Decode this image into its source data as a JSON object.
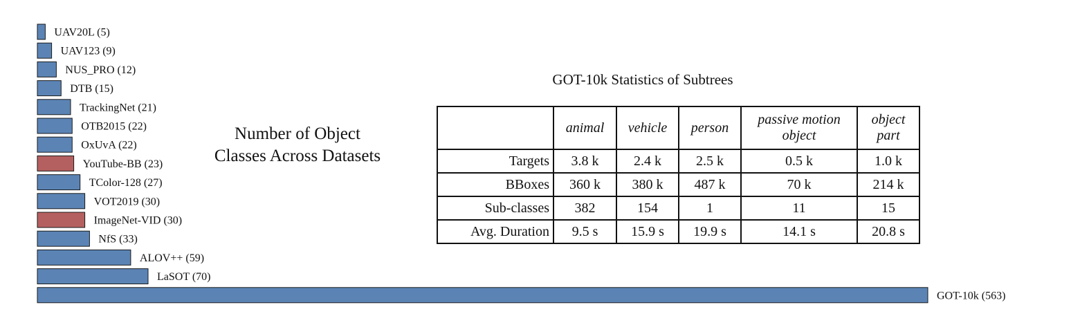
{
  "chart_data": [
    {
      "type": "bar",
      "orientation": "horizontal",
      "title": "Number of Object Classes Across Datasets",
      "title_lines": [
        "Number of Object",
        "Classes Across Datasets"
      ],
      "categories": [
        "UAV20L",
        "UAV123",
        "NUS_PRO",
        "DTB",
        "TrackingNet",
        "OTB2015",
        "OxUvA",
        "YouTube-BB",
        "TColor-128",
        "VOT2019",
        "ImageNet-VID",
        "NfS",
        "ALOV++",
        "LaSOT",
        "GOT-10k"
      ],
      "values": [
        5,
        9,
        12,
        15,
        21,
        22,
        22,
        23,
        27,
        30,
        30,
        33,
        59,
        70,
        563
      ],
      "labels": [
        "UAV20L (5)",
        "UAV123 (9)",
        "NUS_PRO (12)",
        "DTB (15)",
        "TrackingNet (21)",
        "OTB2015 (22)",
        "OxUvA (22)",
        "YouTube-BB (23)",
        "TColor-128 (27)",
        "VOT2019 (30)",
        "ImageNet-VID (30)",
        "NfS (33)",
        "ALOV++ (59)",
        "LaSOT (70)",
        "GOT-10k (563)"
      ],
      "bar_colors": [
        "#5b84b5",
        "#5b84b5",
        "#5b84b5",
        "#5b84b5",
        "#5b84b5",
        "#5b84b5",
        "#5b84b5",
        "#b56060",
        "#5b84b5",
        "#5b84b5",
        "#b56060",
        "#5b84b5",
        "#5b84b5",
        "#5b84b5",
        "#5b84b5"
      ],
      "xlim": [
        0,
        563
      ],
      "grid": false,
      "legend": "none"
    },
    {
      "type": "table",
      "title": "GOT-10k Statistics of Subtrees",
      "columns": [
        "animal",
        "vehicle",
        "person",
        "passive motion object",
        "object part"
      ],
      "column_lines": [
        [
          "animal"
        ],
        [
          "vehicle"
        ],
        [
          "person"
        ],
        [
          "passive motion",
          "object"
        ],
        [
          "object",
          "part"
        ]
      ],
      "rows": [
        {
          "label": "Targets",
          "values": [
            "3.8 k",
            "2.4 k",
            "2.5 k",
            "0.5 k",
            "1.0 k"
          ]
        },
        {
          "label": "BBoxes",
          "values": [
            "360 k",
            "380 k",
            "487 k",
            "70 k",
            "214 k"
          ]
        },
        {
          "label": "Sub-classes",
          "values": [
            "382",
            "154",
            "1",
            "11",
            "15"
          ]
        },
        {
          "label": "Avg. Duration",
          "values": [
            "9.5 s",
            "15.9 s",
            "19.9 s",
            "14.1 s",
            "20.8 s"
          ]
        }
      ]
    }
  ],
  "style": {
    "bar_stroke": "#1a1a1a",
    "text_color": "#111111"
  }
}
